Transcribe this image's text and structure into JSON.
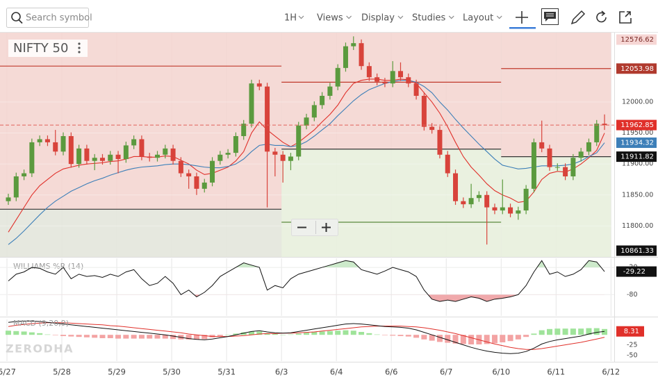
{
  "toolbar": {
    "search_placeholder": "Search symbol",
    "interval": "1H",
    "menus": [
      "Views",
      "Display",
      "Studies",
      "Layout"
    ]
  },
  "watermark": "ZERODHA",
  "chart_data": [
    {
      "type": "candlestick",
      "symbol": "NIFTY 50",
      "ylim": [
        11750,
        12112
      ],
      "yticks": [
        {
          "value": 12000,
          "label": "12000.00"
        },
        {
          "value": 11950,
          "label": "11950.00"
        },
        {
          "value": 11900,
          "label": "11900.00"
        },
        {
          "value": 11850,
          "label": "11850.00"
        },
        {
          "value": 11800,
          "label": "11800.00"
        }
      ],
      "xticks": [
        {
          "value": 0,
          "label": "5/27"
        },
        {
          "value": 7,
          "label": "5/28"
        },
        {
          "value": 14,
          "label": "5/29"
        },
        {
          "value": 21,
          "label": "5/30"
        },
        {
          "value": 28,
          "label": "5/31"
        },
        {
          "value": 35,
          "label": "6/3"
        },
        {
          "value": 42,
          "label": "6/4"
        },
        {
          "value": 49,
          "label": "6/6"
        },
        {
          "value": 56,
          "label": "6/7"
        },
        {
          "value": 63,
          "label": "6/10"
        },
        {
          "value": 70,
          "label": "6/11"
        },
        {
          "value": 77,
          "label": "6/12"
        }
      ],
      "up_color": "#5b9a3e",
      "down_color": "#d8433b",
      "open": [
        11840,
        11846,
        11880,
        11885,
        11935,
        11940,
        11935,
        11920,
        11945,
        11900,
        11925,
        11905,
        11910,
        11905,
        11915,
        11908,
        11930,
        11940,
        11912,
        11910,
        11915,
        11925,
        11905,
        11885,
        11880,
        11860,
        11870,
        11905,
        11915,
        11918,
        11945,
        11965,
        12030,
        12025,
        11920,
        11915,
        11905,
        11912,
        11962,
        11975,
        11995,
        12010,
        12025,
        12055,
        12090,
        12095,
        12058,
        12040,
        12033,
        12030,
        12050,
        12040,
        12030,
        12010,
        11960,
        11955,
        11915,
        11885,
        11840,
        11835,
        11845,
        11850,
        11830,
        11825,
        11830,
        11820,
        11825,
        11860,
        11935,
        11925,
        11895,
        11895,
        11880,
        11910,
        11920,
        11935,
        11965
      ],
      "high": [
        11852,
        11886,
        11891,
        11941,
        11946,
        11946,
        11955,
        11951,
        11951,
        11931,
        11931,
        11916,
        11916,
        11921,
        11921,
        11936,
        11946,
        11946,
        11918,
        11921,
        11931,
        11931,
        11911,
        11891,
        11886,
        11876,
        11911,
        11921,
        11924,
        11951,
        11971,
        12036,
        12036,
        12031,
        11926,
        11921,
        11918,
        11968,
        11981,
        12001,
        12016,
        12031,
        12061,
        12096,
        12106,
        12101,
        12064,
        12046,
        12039,
        12066,
        12064,
        12046,
        12036,
        12016,
        11966,
        11961,
        11921,
        11891,
        11846,
        11868,
        11856,
        11856,
        11836,
        11875,
        11836,
        11831,
        11866,
        11941,
        11970,
        11931,
        11901,
        11901,
        11916,
        11926,
        11941,
        11971,
        11980
      ],
      "low": [
        11834,
        11840,
        11874,
        11879,
        11929,
        11929,
        11914,
        11914,
        11894,
        11894,
        11899,
        11890,
        11899,
        11899,
        11885,
        11902,
        11924,
        11906,
        11904,
        11904,
        11909,
        11899,
        11879,
        11860,
        11850,
        11854,
        11864,
        11899,
        11909,
        11912,
        11939,
        11959,
        12019,
        11830,
        11880,
        11870,
        11890,
        11906,
        11956,
        11969,
        11989,
        12004,
        12019,
        12049,
        12084,
        12052,
        12034,
        12027,
        12024,
        12024,
        12034,
        12024,
        12004,
        11954,
        11949,
        11909,
        11879,
        11834,
        11829,
        11829,
        11839,
        11770,
        11819,
        11819,
        11814,
        11810,
        11819,
        11854,
        11919,
        11889,
        11889,
        11874,
        11874,
        11904,
        11914,
        11929,
        11955
      ],
      "close": [
        11846,
        11880,
        11885,
        11935,
        11940,
        11935,
        11920,
        11945,
        11900,
        11925,
        11905,
        11910,
        11905,
        11915,
        11908,
        11930,
        11940,
        11912,
        11910,
        11915,
        11925,
        11905,
        11885,
        11880,
        11860,
        11870,
        11905,
        11915,
        11918,
        11945,
        11965,
        12030,
        12025,
        11920,
        11915,
        11905,
        11912,
        11962,
        11975,
        11995,
        12010,
        12025,
        12055,
        12090,
        12095,
        12058,
        12040,
        12033,
        12030,
        12050,
        12040,
        12030,
        12010,
        11960,
        11955,
        11915,
        11885,
        11840,
        11835,
        11845,
        11850,
        11830,
        11825,
        11830,
        11820,
        11825,
        11860,
        11935,
        11925,
        11895,
        11895,
        11880,
        11910,
        11920,
        11935,
        11965,
        11962.85
      ],
      "fast_ma": {
        "color": "#e0302a",
        "values": [
          11790,
          11810,
          11830,
          11850,
          11865,
          11875,
          11885,
          11892,
          11895,
          11898,
          11900,
          11901,
          11902,
          11904,
          11905,
          11908,
          11912,
          11912,
          11911,
          11911,
          11913,
          11912,
          11906,
          11900,
          11890,
          11883,
          11885,
          11890,
          11895,
          11905,
          11920,
          11950,
          11968,
          11955,
          11945,
          11935,
          11928,
          11935,
          11945,
          11955,
          11968,
          11980,
          11995,
          12015,
          12030,
          12035,
          12037,
          12037,
          12035,
          12035,
          12037,
          12036,
          12030,
          12015,
          12000,
          11982,
          11960,
          11935,
          11912,
          11895,
          11882,
          11868,
          11857,
          11850,
          11845,
          11838,
          11840,
          11855,
          11875,
          11885,
          11888,
          11887,
          11892,
          11900,
          11910,
          11922,
          11950
        ]
      },
      "slow_ma": {
        "color": "#3d7fb8",
        "values": [
          11770,
          11780,
          11792,
          11805,
          11818,
          11830,
          11840,
          11848,
          11856,
          11862,
          11868,
          11873,
          11877,
          11882,
          11886,
          11890,
          11893,
          11895,
          11896,
          11897,
          11899,
          11900,
          11900,
          11899,
          11897,
          11895,
          11894,
          11894,
          11896,
          11900,
          11908,
          11920,
          11930,
          11932,
          11930,
          11930,
          11928,
          11930,
          11936,
          11945,
          11955,
          11965,
          11978,
          11990,
          12002,
          12012,
          12020,
          12025,
          12030,
          12033,
          12035,
          12035,
          12032,
          12025,
          12015,
          12000,
          11987,
          11972,
          11958,
          11945,
          11932,
          11920,
          11908,
          11898,
          11895,
          11892,
          11893,
          11895,
          11897,
          11897,
          11897,
          11898,
          11900,
          11905,
          11912,
          11918,
          11934.32
        ]
      },
      "zones": [
        {
          "start": 0,
          "end": 35,
          "resistance": 12058,
          "pivot": 11827
        },
        {
          "start": 35,
          "end": 63,
          "resistance": 12032,
          "pivot": 11924,
          "support": 11806
        },
        {
          "start": 63,
          "end": 77,
          "resistance": 12053.98,
          "pivot": 11911.82
        }
      ],
      "range_high": 12576.62,
      "range_low": 10861.33
    },
    {
      "type": "line",
      "title": "WILLIAMS %R (14)",
      "ylim": [
        -127,
        0
      ],
      "yticks": [
        -20,
        -80
      ],
      "color": "#111111",
      "overbought_color": "#cdeacb",
      "oversold_color": "#f0a9ab",
      "values": [
        -50,
        -35,
        -30,
        -20,
        -22,
        -30,
        -35,
        -20,
        -45,
        -35,
        -40,
        -38,
        -42,
        -35,
        -40,
        -30,
        -25,
        -45,
        -60,
        -55,
        -40,
        -55,
        -80,
        -70,
        -85,
        -75,
        -60,
        -40,
        -30,
        -20,
        -10,
        -15,
        -20,
        -70,
        -60,
        -65,
        -45,
        -35,
        -30,
        -25,
        -20,
        -15,
        -10,
        -5,
        -8,
        -25,
        -30,
        -35,
        -28,
        -20,
        -25,
        -30,
        -40,
        -70,
        -90,
        -95,
        -92,
        -95,
        -90,
        -85,
        -88,
        -95,
        -90,
        -88,
        -85,
        -80,
        -60,
        -30,
        -5,
        -35,
        -30,
        -40,
        -35,
        -25,
        -5,
        -8,
        -29.22
      ]
    },
    {
      "type": "macd",
      "title": "MACD (9,20,9)",
      "ylim": [
        -63,
        37
      ],
      "yticks": [
        -25,
        -50
      ],
      "macd_color": "#111111",
      "signal_color": "#e0302a",
      "hist_up_color": "#9fe39a",
      "hist_down_color": "#f3a3a3",
      "macd": [
        30,
        32,
        33,
        33,
        32,
        30,
        28,
        26,
        24,
        22,
        20,
        18,
        16,
        14,
        12,
        10,
        8,
        6,
        4,
        2,
        0,
        -3,
        -6,
        -9,
        -11,
        -12,
        -10,
        -7,
        -4,
        0,
        4,
        8,
        10,
        7,
        5,
        4,
        5,
        8,
        11,
        14,
        17,
        20,
        23,
        26,
        27,
        26,
        24,
        22,
        20,
        19,
        18,
        16,
        12,
        6,
        0,
        -6,
        -12,
        -18,
        -24,
        -30,
        -35,
        -39,
        -42,
        -44,
        -45,
        -44,
        -40,
        -32,
        -22,
        -16,
        -12,
        -9,
        -6,
        -3,
        2,
        6,
        8.31
      ],
      "signal": [
        20,
        23,
        25,
        27,
        28,
        29,
        29,
        29,
        28,
        27,
        26,
        25,
        24,
        22,
        21,
        19,
        17,
        15,
        13,
        11,
        9,
        7,
        5,
        2,
        0,
        -2,
        -4,
        -4,
        -4,
        -3,
        -2,
        0,
        2,
        3,
        3,
        4,
        4,
        5,
        6,
        7,
        9,
        11,
        13,
        15,
        17,
        19,
        20,
        21,
        21,
        21,
        21,
        20,
        19,
        17,
        14,
        11,
        7,
        3,
        -2,
        -7,
        -12,
        -17,
        -22,
        -26,
        -30,
        -33,
        -35,
        -35,
        -33,
        -30,
        -27,
        -24,
        -21,
        -18,
        -14,
        -10,
        -6
      ],
      "histogram": [
        10,
        9,
        8,
        6,
        4,
        1,
        -1,
        -3,
        -4,
        -5,
        -6,
        -7,
        -8,
        -8,
        -9,
        -9,
        -9,
        -9,
        -9,
        -9,
        -9,
        -10,
        -11,
        -11,
        -11,
        -10,
        -6,
        -3,
        0,
        3,
        6,
        8,
        8,
        4,
        2,
        0,
        1,
        3,
        5,
        7,
        8,
        9,
        10,
        11,
        10,
        7,
        4,
        1,
        -1,
        -2,
        -3,
        -4,
        -7,
        -11,
        -14,
        -17,
        -19,
        -21,
        -22,
        -23,
        -23,
        -22,
        -20,
        -18,
        -15,
        -11,
        -5,
        3,
        11,
        14,
        15,
        15,
        15,
        15,
        16,
        16,
        14
      ]
    }
  ]
}
